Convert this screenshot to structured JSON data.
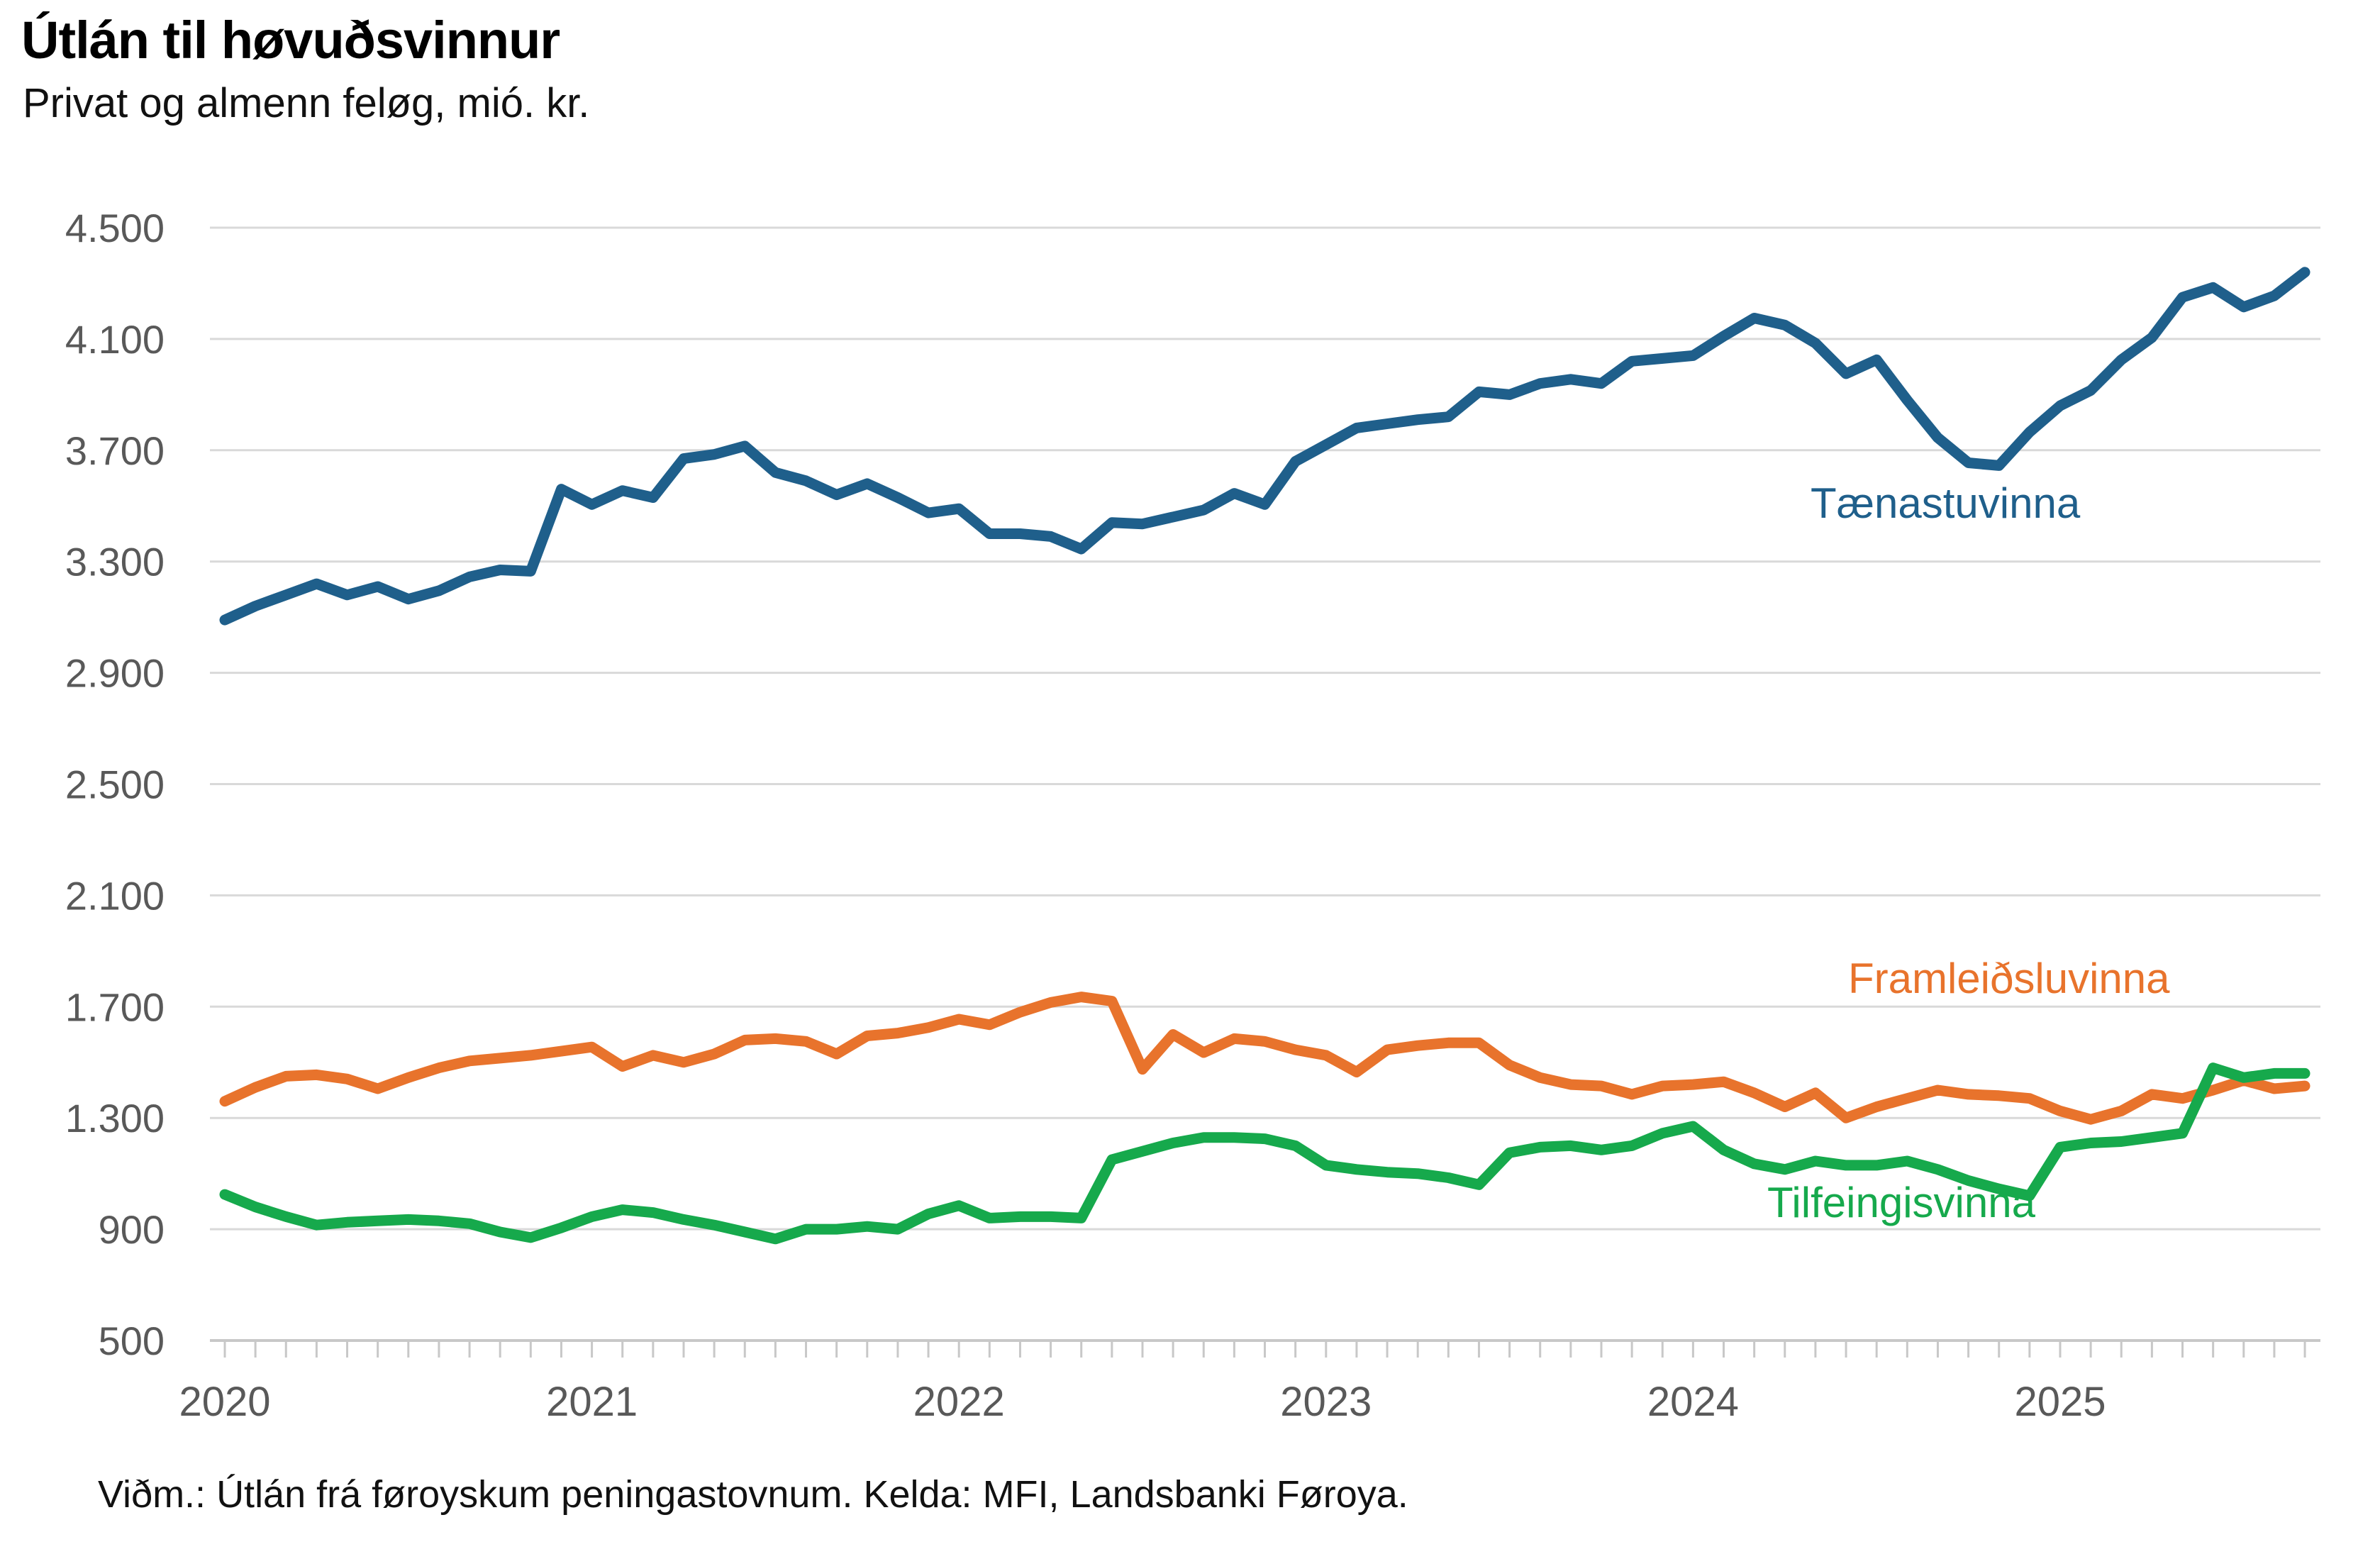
{
  "header": {
    "title": "Útlán til høvuðsvinnur",
    "subtitle": "Privat og almenn feløg, mió. kr."
  },
  "footer": {
    "note": "Viðm.: Útlán frá føroyskum peningastovnum. Kelda: MFI, Landsbanki Føroya."
  },
  "colors": {
    "taenastuvinna": "#1F5F8B",
    "framleidsluvinna": "#E8732C",
    "tilfeingisvinna": "#16A94C",
    "gridline": "#D9D9D9",
    "axis": "#C8C8C8",
    "tick_label": "#595959"
  },
  "chart_data": {
    "type": "line",
    "title": "Útlán til høvuðsvinnur",
    "subtitle": "Privat og almenn feløg, mió. kr.",
    "unit": "mió. kr.",
    "x_start": "2020-01",
    "x_end": "2025-09",
    "x_frequency": "monthly",
    "x_tick_labels": [
      "2020",
      "2021",
      "2022",
      "2023",
      "2024",
      "2025"
    ],
    "y_tick_labels": [
      "500",
      "900",
      "1.300",
      "1.700",
      "2.100",
      "2.500",
      "2.900",
      "3.300",
      "3.700",
      "4.100",
      "4.500"
    ],
    "y_tick_values": [
      500,
      900,
      1300,
      1700,
      2100,
      2500,
      2900,
      3300,
      3700,
      4100,
      4500
    ],
    "ylim": [
      500,
      4500
    ],
    "grid": "horizontal",
    "legend_position": "inline-labels",
    "series": [
      {
        "name": "Tænastuvinna",
        "color": "#1F5F8B",
        "values": [
          3090,
          3140,
          3180,
          3220,
          3180,
          3210,
          3165,
          3195,
          3245,
          3270,
          3265,
          3560,
          3505,
          3555,
          3530,
          3670,
          3685,
          3715,
          3620,
          3590,
          3540,
          3580,
          3530,
          3475,
          3490,
          3400,
          3400,
          3390,
          3345,
          3440,
          3435,
          3460,
          3485,
          3545,
          3505,
          3660,
          3720,
          3780,
          3795,
          3810,
          3820,
          3910,
          3900,
          3940,
          3955,
          3940,
          4020,
          4030,
          4040,
          4110,
          4175,
          4150,
          4085,
          3975,
          4025,
          3880,
          3745,
          3655,
          3645,
          3765,
          3860,
          3915,
          4025,
          4105,
          4250,
          4285,
          4215,
          4255,
          4340
        ]
      },
      {
        "name": "Framleiðsluvinna",
        "color": "#E8732C",
        "values": [
          1360,
          1410,
          1450,
          1455,
          1440,
          1405,
          1445,
          1480,
          1505,
          1515,
          1525,
          1540,
          1555,
          1485,
          1525,
          1500,
          1530,
          1580,
          1585,
          1575,
          1530,
          1595,
          1605,
          1625,
          1655,
          1635,
          1680,
          1715,
          1735,
          1720,
          1475,
          1600,
          1535,
          1585,
          1575,
          1545,
          1525,
          1465,
          1545,
          1560,
          1570,
          1570,
          1490,
          1445,
          1420,
          1415,
          1385,
          1415,
          1420,
          1430,
          1390,
          1340,
          1390,
          1300,
          1340,
          1370,
          1400,
          1385,
          1380,
          1370,
          1325,
          1295,
          1325,
          1385,
          1370,
          1400,
          1435,
          1405,
          1415
        ]
      },
      {
        "name": "Tilfeingisvinna",
        "color": "#16A94C",
        "values": [
          1025,
          980,
          945,
          915,
          925,
          930,
          935,
          930,
          920,
          890,
          870,
          905,
          945,
          970,
          960,
          935,
          915,
          890,
          865,
          900,
          900,
          910,
          900,
          955,
          985,
          940,
          945,
          945,
          940,
          1150,
          1180,
          1210,
          1230,
          1230,
          1225,
          1200,
          1130,
          1115,
          1105,
          1100,
          1085,
          1060,
          1175,
          1195,
          1200,
          1185,
          1200,
          1245,
          1270,
          1185,
          1135,
          1115,
          1145,
          1130,
          1130,
          1145,
          1115,
          1075,
          1045,
          1020,
          1195,
          1210,
          1215,
          1230,
          1245,
          1480,
          1445,
          1460,
          1460
        ]
      }
    ]
  }
}
